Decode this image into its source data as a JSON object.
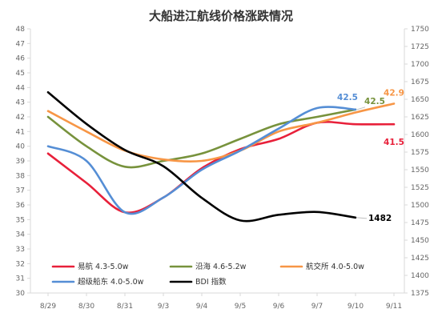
{
  "chart_data": {
    "type": "line",
    "title": "大船进江航线价格涨跌情况",
    "categories": [
      "8/29",
      "8/30",
      "8/31",
      "9/3",
      "9/4",
      "9/5",
      "9/6",
      "9/7",
      "9/10",
      "9/11"
    ],
    "y_left": {
      "min": 30,
      "max": 48,
      "step": 1,
      "ticks": [
        "30",
        "31",
        "32",
        "33",
        "34",
        "35",
        "36",
        "37",
        "38",
        "39",
        "40",
        "41",
        "42",
        "43",
        "44",
        "45",
        "46",
        "47",
        "48"
      ]
    },
    "y_right": {
      "min": 1375,
      "max": 1750,
      "step": 25,
      "ticks": [
        "1375",
        "1400",
        "1425",
        "1450",
        "1475",
        "1500",
        "1525",
        "1550",
        "1575",
        "1600",
        "1625",
        "1650",
        "1675",
        "1700",
        "1725",
        "1750"
      ]
    },
    "grid": false,
    "legend_position": "bottom-inside",
    "series": [
      {
        "name": "易航 4.3-5.0w",
        "color": "#e8203a",
        "axis": "left",
        "values": [
          39.5,
          37.5,
          35.5,
          36.5,
          38.5,
          39.8,
          40.5,
          41.6,
          41.5,
          41.5
        ],
        "end_label": "41.5"
      },
      {
        "name": "沿海 4.6-5.2w",
        "color": "#77923c",
        "axis": "left",
        "values": [
          42,
          40,
          38.6,
          39,
          39.5,
          40.5,
          41.5,
          42,
          42.5,
          null
        ],
        "end_label": "42.5"
      },
      {
        "name": "航交所 4.0-5.0w",
        "color": "#f79646",
        "axis": "left",
        "values": [
          42.4,
          41,
          39.7,
          39.1,
          39,
          39.7,
          41,
          41.6,
          42.3,
          42.9
        ],
        "end_label": "42.9"
      },
      {
        "name": "超级船东 4.0-5.0w",
        "color": "#558ed5",
        "axis": "left",
        "values": [
          40,
          39,
          35.5,
          36.5,
          38.4,
          39.7,
          41.2,
          42.6,
          42.5,
          null
        ],
        "end_label": "42.5"
      },
      {
        "name": "BDI 指数",
        "color": "#000000",
        "axis": "right",
        "values": [
          1660,
          1615,
          1578,
          1555,
          1510,
          1478,
          1486,
          1490,
          1482,
          null
        ],
        "end_label": "1482"
      }
    ]
  }
}
